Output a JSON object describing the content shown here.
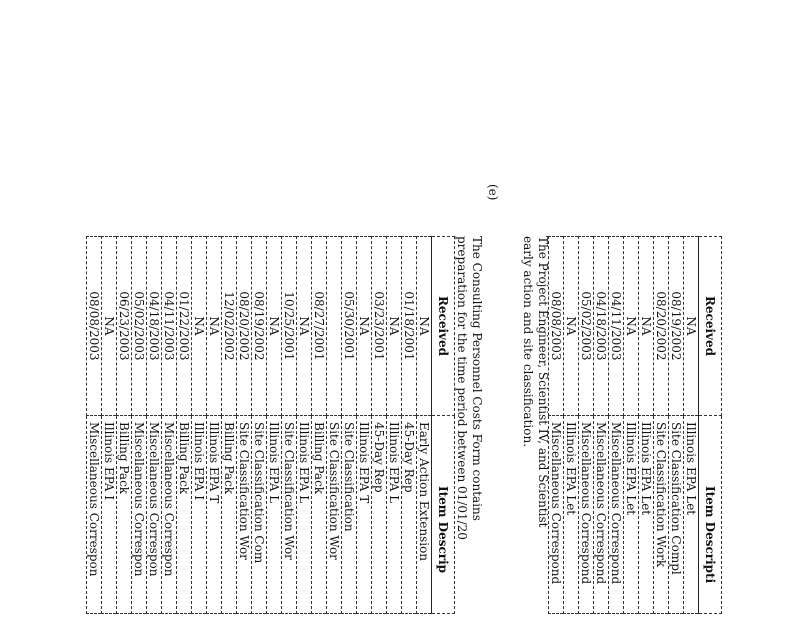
{
  "section_label": "(e)",
  "table1": {
    "headers": [
      "Received",
      "Item Descripti"
    ],
    "rows": [
      [
        "NA",
        "Illinois EPA Let"
      ],
      [
        "08/19/2002",
        "Site Classification Compl"
      ],
      [
        "08/20/2002",
        "Site Classification Work"
      ],
      [
        "NA",
        "Illinois EPA Let"
      ],
      [
        "NA",
        "Illinois EPA Let"
      ],
      [
        "04/11/2003",
        "Miscellaneous Correspond"
      ],
      [
        "04/18/2003",
        "Miscellaneous Correspond"
      ],
      [
        "05/02/2003",
        "Miscellaneous Correspond"
      ],
      [
        "NA",
        "Illinois EPA Let"
      ],
      [
        "08/08/2003",
        "Miscellaneous Correspond"
      ]
    ]
  },
  "paragraph1": [
    "The Project Engineer, Scientist IV, and Scientist",
    "early action and site classification."
  ],
  "paragraph2": [
    "The Consulting Personnel Costs Form contains",
    "preparation for the time period between 01/01/20"
  ],
  "table2": {
    "headers": [
      "Received",
      "Item Descrip"
    ],
    "rows": [
      [
        "NA",
        "Early Action Extension"
      ],
      [
        "01/18/2001",
        "45-Day Rep"
      ],
      [
        "NA",
        "Illinois EPA L"
      ],
      [
        "03/23/2001",
        "45-Day Rep"
      ],
      [
        "NA",
        "Illinois EPA T"
      ],
      [
        "05/30/2001",
        "Site Classification"
      ],
      [
        "",
        "Site Classification Wor"
      ],
      [
        "08/27/2001",
        "Billing Pack"
      ],
      [
        "NA",
        "Illinois EPA L"
      ],
      [
        "10/25/2001",
        "Site Classification Wor"
      ],
      [
        "NA",
        "Illinois EPA L"
      ],
      [
        "08/19/2002",
        "Site Classification Com"
      ],
      [
        "08/20/2002",
        "Site Classification Wor"
      ],
      [
        "12/02/2002",
        "Billing Pack"
      ],
      [
        "NA",
        "Illinois EPA T"
      ],
      [
        "NA",
        "Illinois EPA I"
      ],
      [
        "01/22/2003",
        "Billing Pack"
      ],
      [
        "04/11/2003",
        "Miscellaneous Correspon"
      ],
      [
        "04/18/2003",
        "Miscellaneous Correspon"
      ],
      [
        "05/02/2003",
        "Miscellaneous Correspon"
      ],
      [
        "06/23/2003",
        "Billing Pack"
      ],
      [
        "NA",
        "Illinois EPA I"
      ],
      [
        "08/08/2003",
        "Miscellaneous Correspon"
      ]
    ]
  }
}
